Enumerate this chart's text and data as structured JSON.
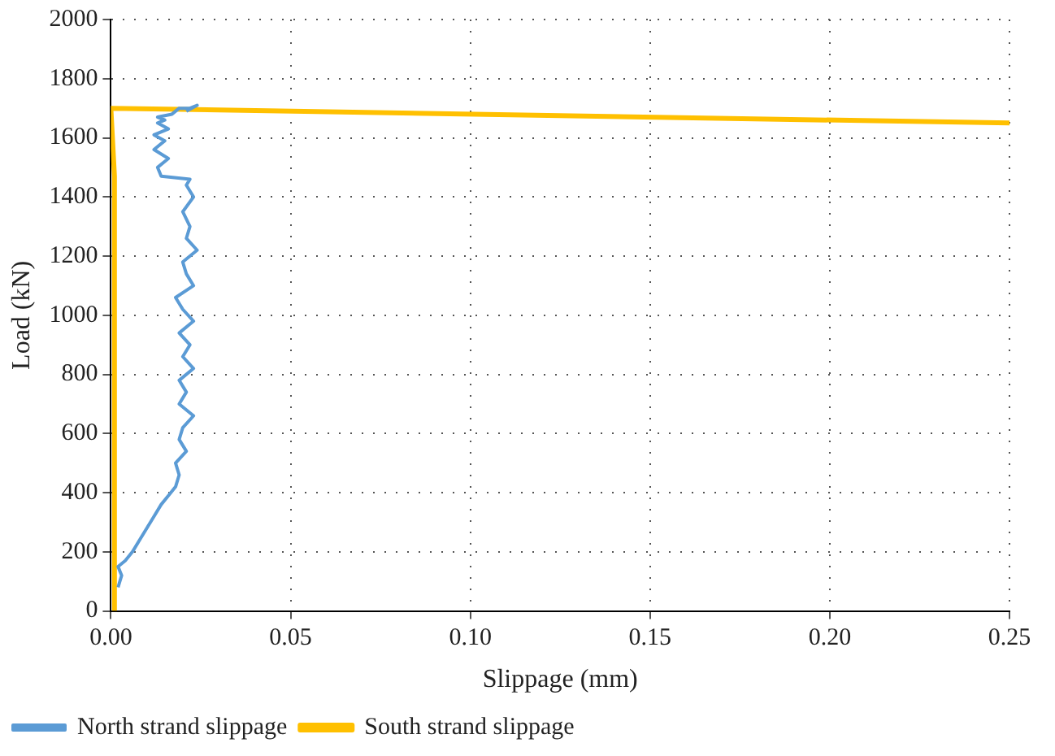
{
  "chart_data": {
    "type": "line",
    "xlabel": "Slippage (mm)",
    "ylabel": "Load (kN)",
    "xlim": [
      0,
      0.25
    ],
    "xticks": [
      {
        "value": 0,
        "label": "0.00"
      },
      {
        "value": 0.05,
        "label": "0.05"
      },
      {
        "value": 0.1,
        "label": "0.10"
      },
      {
        "value": 0.15,
        "label": "0.15"
      },
      {
        "value": 0.2,
        "label": "0.20"
      },
      {
        "value": 0.25,
        "label": "0.25"
      }
    ],
    "ylim": [
      0,
      2000
    ],
    "yticks": [
      0,
      200,
      400,
      600,
      800,
      1000,
      1200,
      1400,
      1600,
      1800,
      2000
    ],
    "grid": true,
    "legend": "bottom",
    "marker": "none",
    "series": [
      {
        "name": "North strand slippage",
        "color": "#5b9bd5",
        "x": [
          0.002,
          0.003,
          0.002,
          0.004,
          0.006,
          0.008,
          0.01,
          0.012,
          0.014,
          0.016,
          0.018,
          0.019,
          0.018,
          0.021,
          0.019,
          0.02,
          0.023,
          0.019,
          0.021,
          0.019,
          0.023,
          0.02,
          0.022,
          0.019,
          0.023,
          0.02,
          0.018,
          0.023,
          0.021,
          0.02,
          0.024,
          0.021,
          0.022,
          0.02,
          0.023,
          0.021,
          0.022,
          0.014,
          0.013,
          0.016,
          0.012,
          0.015,
          0.012,
          0.016,
          0.013,
          0.015,
          0.013,
          0.017,
          0.019,
          0.022,
          0.024,
          0.021
        ],
        "values": [
          80,
          120,
          150,
          170,
          200,
          240,
          280,
          320,
          360,
          390,
          420,
          460,
          500,
          540,
          580,
          620,
          660,
          700,
          740,
          780,
          820,
          860,
          900,
          940,
          980,
          1020,
          1060,
          1100,
          1140,
          1180,
          1220,
          1260,
          1300,
          1350,
          1400,
          1440,
          1460,
          1470,
          1500,
          1530,
          1560,
          1590,
          1610,
          1630,
          1650,
          1660,
          1670,
          1680,
          1700,
          1700,
          1710,
          1690
        ]
      },
      {
        "name": "South strand slippage",
        "color": "#ffc000",
        "x": [
          0.001,
          0.001,
          0.001,
          0.001,
          0.0,
          0.25
        ],
        "values": [
          0,
          500,
          1000,
          1470,
          1700,
          1650
        ]
      }
    ]
  }
}
